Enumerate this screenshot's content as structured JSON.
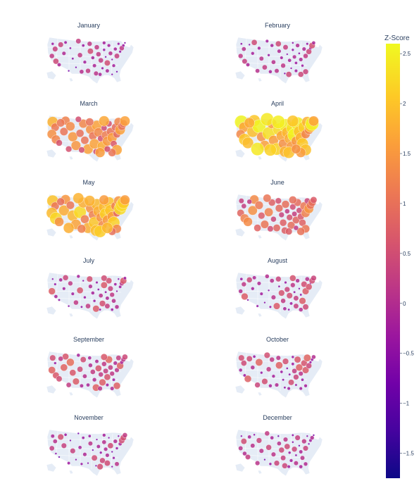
{
  "colorbar": {
    "title": "Z-Score",
    "range": [
      -1.75,
      2.6
    ],
    "ticks": [
      {
        "value": 2.5,
        "label": "2.5"
      },
      {
        "value": 2,
        "label": "2"
      },
      {
        "value": 1.5,
        "label": "1.5"
      },
      {
        "value": 1,
        "label": "1"
      },
      {
        "value": 0.5,
        "label": "0.5"
      },
      {
        "value": 0,
        "label": "0"
      },
      {
        "value": -0.5,
        "label": "−0.5"
      },
      {
        "value": -1,
        "label": "−1"
      },
      {
        "value": -1.5,
        "label": "−1.5"
      }
    ],
    "colorscale": [
      "#0d0887",
      "#46039f",
      "#7201a8",
      "#9c179e",
      "#bd3786",
      "#d8576b",
      "#ed7953",
      "#fb9f3a",
      "#fdca26",
      "#f0f921"
    ]
  },
  "chart_data": {
    "type": "scatter",
    "projection": "albers usa",
    "value_field": "z-score",
    "panels": [
      {
        "title": "January",
        "level": -0.1
      },
      {
        "title": "February",
        "level": 0.0
      },
      {
        "title": "March",
        "level": 1.2
      },
      {
        "title": "April",
        "level": 1.9
      },
      {
        "title": "May",
        "level": 1.6
      },
      {
        "title": "June",
        "level": 0.9
      },
      {
        "title": "July",
        "level": 0.1
      },
      {
        "title": "August",
        "level": 0.1
      },
      {
        "title": "September",
        "level": 0.3
      },
      {
        "title": "October",
        "level": 0.2
      },
      {
        "title": "November",
        "level": -0.15
      },
      {
        "title": "December",
        "level": -0.2
      }
    ]
  }
}
